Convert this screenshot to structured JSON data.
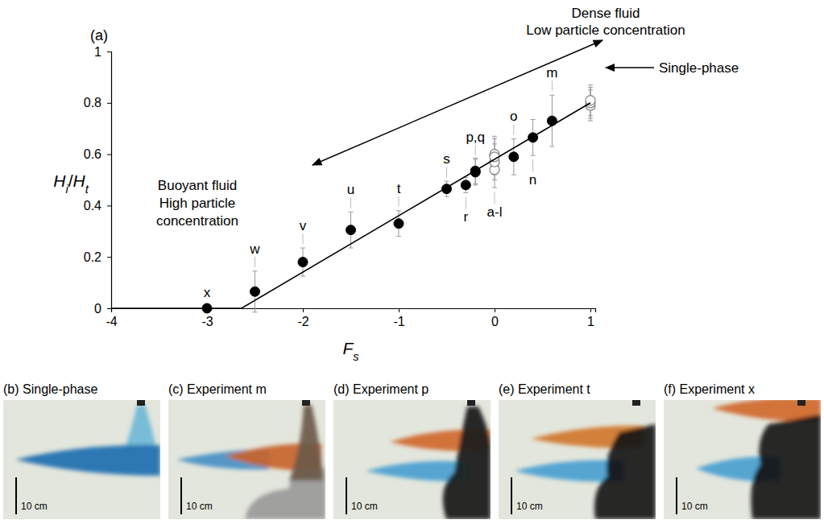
{
  "chart_data": {
    "type": "scatter",
    "panel_label": "(a)",
    "xlabel": "Fs",
    "ylabel": "Hi/Ht",
    "xlim": [
      -4,
      1.05
    ],
    "xticks": [
      -4,
      -3,
      -2,
      -1,
      0,
      1
    ],
    "ylim": [
      0,
      1
    ],
    "yticks": [
      0,
      0.2,
      0.4,
      0.6,
      0.8,
      1
    ],
    "series": [
      {
        "type": "scatter",
        "marker": "filled-circle",
        "color": "#000000",
        "x": [
          -3,
          -2.5,
          -2,
          -1.5,
          -1,
          -0.5,
          -0.3,
          -0.2,
          -0.2,
          0.2,
          0.4,
          0.6
        ],
        "values": [
          0,
          0.065,
          0.18,
          0.305,
          0.33,
          0.465,
          0.48,
          0.53,
          0.535,
          0.59,
          0.665,
          0.73
        ],
        "errors": [
          0,
          0.08,
          0.055,
          0.07,
          0.05,
          0.03,
          0.03,
          0.05,
          0.05,
          0.07,
          0.07,
          0.1
        ],
        "labels": [
          "x",
          "w",
          "v",
          "u",
          "t",
          "s",
          "r",
          "p,q",
          null,
          "o",
          "n",
          "m"
        ]
      },
      {
        "type": "scatter",
        "marker": "open-circle",
        "color": "#808080",
        "x": [
          0,
          0,
          0,
          0
        ],
        "values": [
          0.54,
          0.57,
          0.6,
          0.59
        ],
        "errors": [
          0.07,
          0.07,
          0.07,
          0.07
        ],
        "labels": [
          "a-l",
          null,
          null,
          null
        ]
      },
      {
        "type": "scatter",
        "marker": "open-circle",
        "color": "#808080",
        "x": [
          1,
          1,
          1
        ],
        "values": [
          0.79,
          0.8,
          0.81
        ],
        "errors": [
          0.06,
          0.06,
          0.06
        ]
      },
      {
        "type": "line",
        "color": "#000000",
        "x": [
          -4,
          -2.64,
          1
        ],
        "values": [
          0,
          0,
          0.8
        ]
      }
    ],
    "annotations": [
      {
        "lines": [
          "Dense fluid",
          "Low particle concentration"
        ]
      },
      {
        "lines": [
          "Buoyant fluid",
          "High particle",
          "concentration"
        ]
      },
      {
        "lines": [
          "Single-phase"
        ]
      }
    ]
  },
  "photo_panels": [
    {
      "title": "(b) Single-phase",
      "scale_bar": "10 cm"
    },
    {
      "title": "(c) Experiment m",
      "scale_bar": "10 cm"
    },
    {
      "title": "(d) Experiment p",
      "scale_bar": "10 cm"
    },
    {
      "title": "(e) Experiment t",
      "scale_bar": "10 cm"
    },
    {
      "title": "(f) Experiment x",
      "scale_bar": "10 cm"
    }
  ]
}
